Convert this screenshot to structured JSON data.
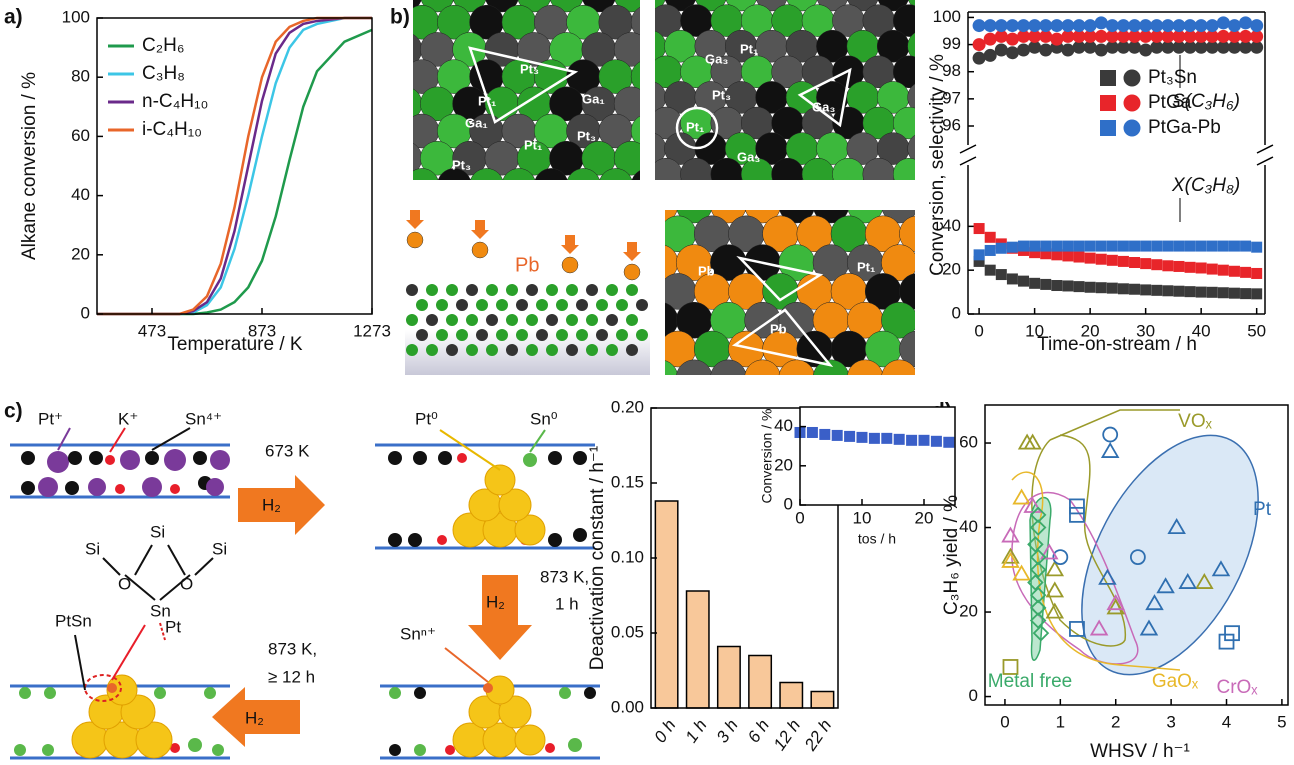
{
  "panels": {
    "a": "a)",
    "b": "b)",
    "c": "c)",
    "d": "d)"
  },
  "structures": {
    "pt1": "Pt₁",
    "pt3": "Pt₃",
    "ga1": "Ga₁",
    "ga3": "Ga₃",
    "pb": "Pb"
  },
  "scheme": {
    "pt_plus": "Pt⁺",
    "k_plus": "K⁺",
    "sn4": "Sn⁴⁺",
    "step1": "673 K",
    "h2": "H₂",
    "pt0": "Pt⁰",
    "sn0": "Sn⁰",
    "step2": [
      "873 K,",
      "1 h"
    ],
    "snn": "Snⁿ⁺",
    "step3": [
      "873 K,",
      "≥ 12 h"
    ],
    "ptsn": "PtSn",
    "pt": "Pt",
    "si": "Si",
    "o": "O",
    "sn": "Sn"
  },
  "chart_data": [
    {
      "type": "line",
      "xlabel": "Temperature / K",
      "ylabel": "Alkane conversion / %",
      "x": [
        273,
        373,
        473,
        573,
        623,
        673,
        723,
        773,
        823,
        873,
        923,
        973,
        1023,
        1073,
        1173,
        1273
      ],
      "series": [
        {
          "name": "C₂H₆",
          "color": "#1f9a4c",
          "values": [
            0,
            0,
            0,
            0,
            0,
            0.5,
            1.5,
            4,
            9,
            18,
            33,
            52,
            70,
            82,
            92,
            96
          ]
        },
        {
          "name": "C₃H₈",
          "color": "#3cc6e6",
          "values": [
            0,
            0,
            0,
            0,
            0.5,
            3,
            9,
            22,
            40,
            60,
            78,
            90,
            96,
            98,
            100,
            100
          ]
        },
        {
          "name": "n-C₄H₁₀",
          "color": "#6a2a8a",
          "values": [
            0,
            0,
            0,
            0,
            1,
            4,
            12,
            28,
            50,
            72,
            88,
            95,
            98,
            99,
            100,
            100
          ]
        },
        {
          "name": "i-C₄H₁₀",
          "color": "#e8662a",
          "values": [
            0,
            0,
            0,
            0,
            1.5,
            6,
            17,
            36,
            60,
            80,
            92,
            97,
            99,
            100,
            100,
            100
          ]
        }
      ],
      "xlim": [
        273,
        1273
      ],
      "xticks": [
        473,
        873,
        1273
      ],
      "ylim": [
        0,
        100
      ],
      "yticks": [
        0,
        20,
        40,
        60,
        80,
        100
      ],
      "legend": "upper left"
    },
    {
      "type": "scatter",
      "xlabel": "Time-on-stream / h",
      "ylabel": "Conversion, selectivity / %",
      "x": [
        0,
        2,
        4,
        6,
        8,
        10,
        12,
        14,
        16,
        18,
        20,
        22,
        24,
        26,
        28,
        30,
        32,
        34,
        36,
        38,
        40,
        42,
        44,
        46,
        48,
        50
      ],
      "series": [
        {
          "name": "Pt₃Sn",
          "color": "#3a3a3a",
          "values": [
            24,
            20,
            18,
            16,
            15,
            14,
            13.5,
            13,
            12.8,
            12.5,
            12.2,
            12,
            11.8,
            11.5,
            11.3,
            11,
            10.8,
            10.6,
            10.4,
            10.2,
            10,
            9.9,
            9.7,
            9.5,
            9.3,
            9.2
          ],
          "selectivity": [
            98.5,
            98.6,
            98.8,
            98.7,
            98.8,
            98.9,
            98.8,
            98.9,
            98.8,
            98.9,
            98.9,
            98.8,
            98.9,
            98.9,
            98.9,
            98.8,
            98.9,
            98.9,
            98.9,
            98.9,
            98.9,
            98.9,
            98.9,
            98.9,
            98.9,
            98.9
          ]
        },
        {
          "name": "PtGa",
          "color": "#e8252a",
          "values": [
            39,
            35,
            32,
            30,
            29,
            28,
            27.5,
            27,
            26.5,
            26,
            25.5,
            25,
            24.5,
            24,
            23.5,
            23,
            22.5,
            22,
            21.7,
            21.3,
            21,
            20.5,
            20,
            19.5,
            19,
            18.5
          ],
          "selectivity": [
            99.0,
            99.2,
            99.3,
            99.2,
            99.3,
            99.3,
            99.3,
            99.2,
            99.3,
            99.3,
            99.3,
            99.3,
            99.3,
            99.3,
            99.3,
            99.3,
            99.3,
            99.3,
            99.3,
            99.3,
            99.3,
            99.3,
            99.3,
            99.3,
            99.3,
            99.3
          ]
        },
        {
          "name": "PtGa-Pb",
          "color": "#2f6fc8",
          "values": [
            27,
            29,
            30,
            30.5,
            31,
            31,
            31,
            31,
            31,
            31,
            31,
            31,
            31,
            31,
            31,
            31,
            31,
            31,
            31,
            31,
            31,
            31,
            31,
            31,
            31,
            30.5
          ],
          "selectivity": [
            99.7,
            99.7,
            99.7,
            99.7,
            99.7,
            99.7,
            99.7,
            99.7,
            99.7,
            99.7,
            99.7,
            99.8,
            99.7,
            99.7,
            99.7,
            99.7,
            99.7,
            99.7,
            99.7,
            99.7,
            99.7,
            99.7,
            99.8,
            99.7,
            99.8,
            99.7
          ]
        }
      ],
      "annotations": [
        "S(C₃H₆)",
        "X(C₃H₈)"
      ],
      "xlim": [
        -2,
        51.5
      ],
      "xticks": [
        0,
        10,
        20,
        30,
        40,
        50
      ],
      "ylim": [
        0,
        68
      ],
      "yticks": [
        0,
        20,
        40
      ],
      "y2lim": [
        95.3,
        100.2
      ],
      "y2ticks": [
        96,
        97,
        98,
        99,
        100
      ]
    },
    {
      "type": "bar",
      "ylabel": "Deactivation constant / h⁻¹",
      "color": "#f8c89a",
      "categories": [
        "0 h",
        "1 h",
        "3 h",
        "6 h",
        "12 h",
        "22 h"
      ],
      "values": [
        0.138,
        0.078,
        0.041,
        0.035,
        0.017,
        0.011
      ],
      "ylim": [
        0,
        0.2
      ],
      "yticks": [
        {
          "value": 0,
          "label": "0.00"
        },
        {
          "value": 0.05,
          "label": "0.05"
        },
        {
          "value": 0.1,
          "label": "0.10"
        },
        {
          "value": 0.15,
          "label": "0.15"
        },
        {
          "value": 0.2,
          "label": "0.20"
        }
      ]
    },
    {
      "type": "scatter",
      "inset": true,
      "xlabel": "tos / h",
      "ylabel": "Conversion / %",
      "color": "#3a5fc8",
      "x": [
        0,
        2,
        4,
        6,
        8,
        10,
        12,
        14,
        16,
        18,
        20,
        22,
        24
      ],
      "values": [
        37,
        37,
        36,
        35.5,
        35,
        34.5,
        34,
        34,
        33.5,
        33,
        33,
        32.5,
        32
      ],
      "xlim": [
        0,
        25
      ],
      "xticks": [
        0,
        10,
        20
      ],
      "ylim": [
        0,
        50
      ],
      "yticks": [
        0,
        20,
        40
      ]
    },
    {
      "type": "scatter",
      "xlabel": "WHSV / h⁻¹",
      "ylabel": "C₃H₆ yield / %",
      "series": [
        {
          "name": "VOₓ",
          "color": "#9a9a2a",
          "marker": [
            "triangle",
            "triangle",
            "triangle",
            "triangle",
            "triangle",
            "triangle",
            "triangle",
            "triangle",
            "square"
          ],
          "x": [
            0.4,
            0.5,
            0.1,
            0.9,
            0.9,
            0.9,
            2.0,
            3.6,
            0.1
          ],
          "values": [
            60,
            60,
            33,
            20,
            25,
            30,
            21,
            27,
            7
          ]
        },
        {
          "name": "Pt",
          "color": "#2f6fb0",
          "marker": [
            "triangle",
            "triangle",
            "triangle",
            "triangle",
            "triangle",
            "triangle",
            "triangle",
            "triangle",
            "square",
            "square",
            "square",
            "square",
            "square",
            "circle",
            "circle",
            "circle"
          ],
          "x": [
            1.9,
            1.85,
            2.6,
            3.1,
            2.7,
            2.9,
            3.3,
            3.9,
            1.3,
            1.3,
            1.3,
            4.0,
            4.1,
            1.9,
            1.0,
            2.4
          ],
          "values": [
            58,
            28,
            16,
            40,
            22,
            26,
            27,
            30,
            43,
            45,
            16,
            13,
            15,
            62,
            33,
            33
          ]
        },
        {
          "name": "GaOₓ",
          "color": "#e8b82a",
          "marker": "triangle",
          "x": [
            0.3,
            0.1,
            0.3
          ],
          "values": [
            47,
            32,
            29
          ]
        },
        {
          "name": "CrOₓ",
          "color": "#c86ab8",
          "marker": "triangle",
          "x": [
            0.1,
            0.5,
            0.8,
            1.7,
            2.0
          ],
          "values": [
            38,
            45,
            34,
            16,
            22
          ]
        },
        {
          "name": "Metal free",
          "color": "#3aaa6a",
          "marker": "diamond",
          "x": [
            0.6,
            0.6,
            0.55,
            0.6,
            0.6,
            0.55,
            0.6,
            0.6,
            0.6,
            0.65
          ],
          "values": [
            43,
            40,
            36,
            33,
            30,
            27,
            24,
            21,
            18,
            15
          ]
        }
      ],
      "xlim": [
        -0.36,
        5.11
      ],
      "xticks": [
        0,
        1,
        2,
        3,
        4,
        5
      ],
      "ylim": [
        -2,
        69
      ],
      "yticks": [
        0,
        20,
        40,
        60
      ]
    }
  ]
}
